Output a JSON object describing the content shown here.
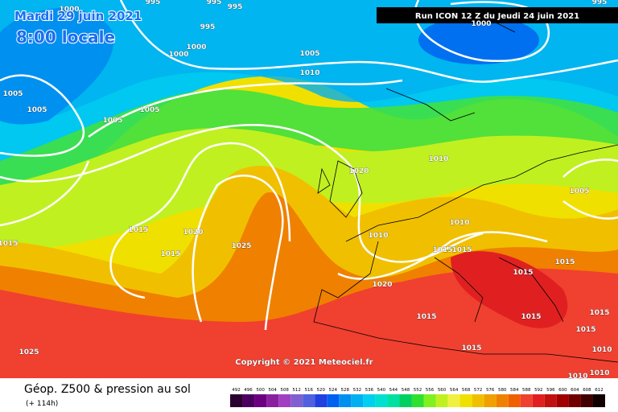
{
  "header": {
    "date": "Mardi 29 juin 2021",
    "time": "8:00 locale",
    "run": "Run ICON 12 Z du Jeudi 24 juin 2021"
  },
  "copyright": "Copyright © 2021 Meteociel.fr",
  "footer": {
    "title": "Géop. Z500 & pression au sol",
    "lead": "(+ 114h)"
  },
  "isobar_labels": [
    1000,
    995,
    995,
    995,
    995,
    1000,
    1000,
    1005,
    1005,
    1005,
    1005,
    1005,
    1010,
    1000,
    995,
    1020,
    1010,
    1005,
    1015,
    1020,
    1015,
    1025,
    1015,
    1010,
    1010,
    1015,
    1015,
    1020,
    1015,
    1015,
    1015,
    1015,
    1015,
    1015,
    1015,
    1010,
    1025,
    1010,
    1010
  ],
  "colorbar": {
    "values": [
      492,
      496,
      500,
      504,
      508,
      512,
      516,
      520,
      524,
      528,
      532,
      536,
      540,
      544,
      548,
      552,
      556,
      560,
      564,
      568,
      572,
      576,
      580,
      584,
      588,
      592,
      596,
      600,
      604,
      608,
      612
    ],
    "colors": [
      "#2a0030",
      "#4b0060",
      "#6a0080",
      "#8a20a0",
      "#a040c0",
      "#8060d0",
      "#5060e0",
      "#2040e0",
      "#0060f0",
      "#0090f0",
      "#00b0f0",
      "#00d0f0",
      "#00e0d0",
      "#00e0a0",
      "#00d060",
      "#30e030",
      "#80f020",
      "#c0f020",
      "#f0f040",
      "#f0e000",
      "#f0c000",
      "#f0a000",
      "#f08000",
      "#f06000",
      "#f04030",
      "#e02020",
      "#c01010",
      "#a00000",
      "#700000",
      "#400000",
      "#100000"
    ]
  }
}
